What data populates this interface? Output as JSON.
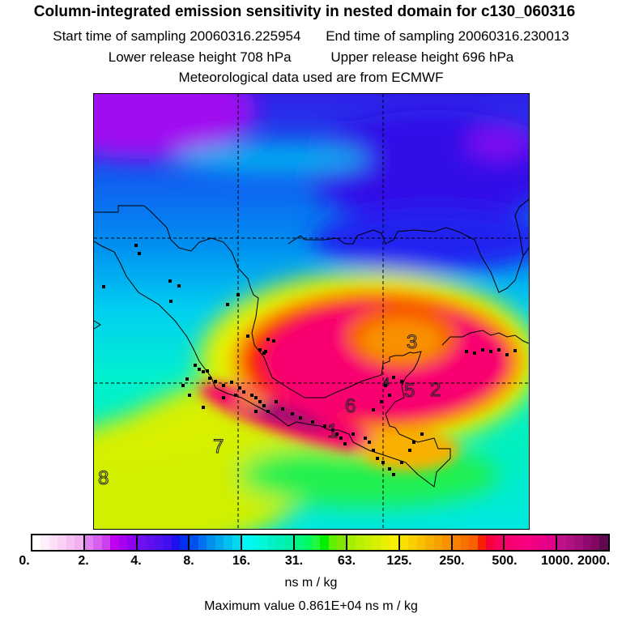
{
  "header": {
    "title": "Column-integrated emission sensitivity in nested domain for c130_060316",
    "start_label": "Start time of sampling 20060316.225954",
    "end_label": "End time of sampling 20060316.230013",
    "lower_label": "Lower release height  708 hPa",
    "upper_label": "Upper release height  696 hPa",
    "met_label": "Meteorological data used are from ECMWF"
  },
  "map": {
    "cluster_labels": [
      "1",
      "2",
      "3",
      "4",
      "5",
      "6",
      "7",
      "8"
    ]
  },
  "colorbar": {
    "ticks": [
      "0.",
      "2.",
      "4.",
      "8.",
      "16.",
      "31.",
      "63.",
      "125.",
      "250.",
      "500.",
      "1000.",
      "2000."
    ],
    "units": "ns m / kg",
    "segments": [
      [
        "#ffffff",
        "#fef0fb",
        "#fde0f8",
        "#fbd0f5",
        "#f7c0f2",
        "#f2b0f0"
      ],
      [
        "#e080f0",
        "#d860f0",
        "#cc40f0",
        "#c000f0",
        "#a800f0",
        "#9000f0"
      ],
      [
        "#7010f0",
        "#6010f0",
        "#5010f0",
        "#4010f0",
        "#2010f0",
        "#0030f0"
      ],
      [
        "#0050f0",
        "#0070f0",
        "#0090f0",
        "#00a8f0",
        "#00c0f0",
        "#00d8f0"
      ],
      [
        "#00f8f8",
        "#00f8e8",
        "#00f8d8",
        "#00f0c8",
        "#00f0b8",
        "#00f0a8"
      ],
      [
        "#00f880",
        "#00f860",
        "#20f840",
        "#00f000",
        "#60f000",
        "#80e800"
      ],
      [
        "#a0f000",
        "#b8f000",
        "#c8f000",
        "#d8f000",
        "#e8f000",
        "#f8f000"
      ],
      [
        "#f8e000",
        "#f8d000",
        "#f8c000",
        "#f8b000",
        "#f8a000",
        "#f89000"
      ],
      [
        "#f88000",
        "#f87000",
        "#f86000",
        "#f82000",
        "#f80040",
        "#f80060"
      ],
      [
        "#f80070",
        "#f80078",
        "#f80080",
        "#f00080",
        "#e80088",
        "#e00088"
      ],
      [
        "#c0108a",
        "#b01080",
        "#a01078",
        "#900870",
        "#800860",
        "#600850"
      ]
    ]
  },
  "footer": {
    "max_label": "Maximum value  0.861E+04 ns m / kg"
  }
}
